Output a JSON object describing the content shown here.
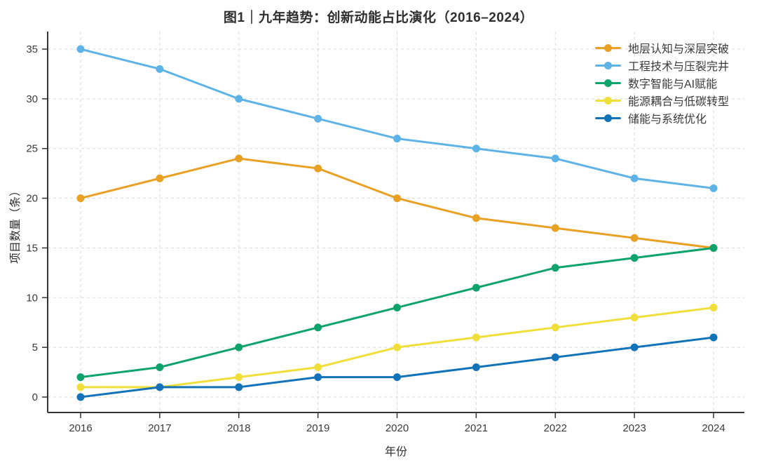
{
  "chart_data": {
    "type": "line",
    "title": "图1｜九年趋势：创新动能占比演化（2016–2024）",
    "xlabel": "年份",
    "ylabel": "项目数量（条）",
    "categories": [
      "2016",
      "2017",
      "2018",
      "2019",
      "2020",
      "2021",
      "2022",
      "2023",
      "2024"
    ],
    "yticks": [
      0,
      5,
      10,
      15,
      20,
      25,
      30,
      35
    ],
    "ylim": [
      -1.55,
      36.8
    ],
    "grid": "dashed-both",
    "legend_position": "upper-right",
    "axis_color": "#333333",
    "grid_color": "#d9d9d9",
    "tick_label_color": "#3a3a3a",
    "series": [
      {
        "name": "地层认知与深层突破",
        "color": "#E8A025",
        "values": [
          20,
          22,
          24,
          23,
          20,
          18,
          17,
          16,
          15
        ]
      },
      {
        "name": "工程技术与压裂完井",
        "color": "#5EB3E6",
        "values": [
          35,
          33,
          30,
          28,
          26,
          25,
          24,
          22,
          21
        ]
      },
      {
        "name": "数字智能与AI赋能",
        "color": "#0EA36C",
        "values": [
          2,
          3,
          5,
          7,
          9,
          11,
          13,
          14,
          15
        ]
      },
      {
        "name": "能源耦合与低碳转型",
        "color": "#F0DF3A",
        "values": [
          1,
          1,
          2,
          3,
          5,
          6,
          7,
          8,
          9
        ]
      },
      {
        "name": "储能与系统优化",
        "color": "#1273B8",
        "values": [
          0,
          1,
          1,
          2,
          2,
          3,
          4,
          5,
          6
        ]
      }
    ]
  }
}
